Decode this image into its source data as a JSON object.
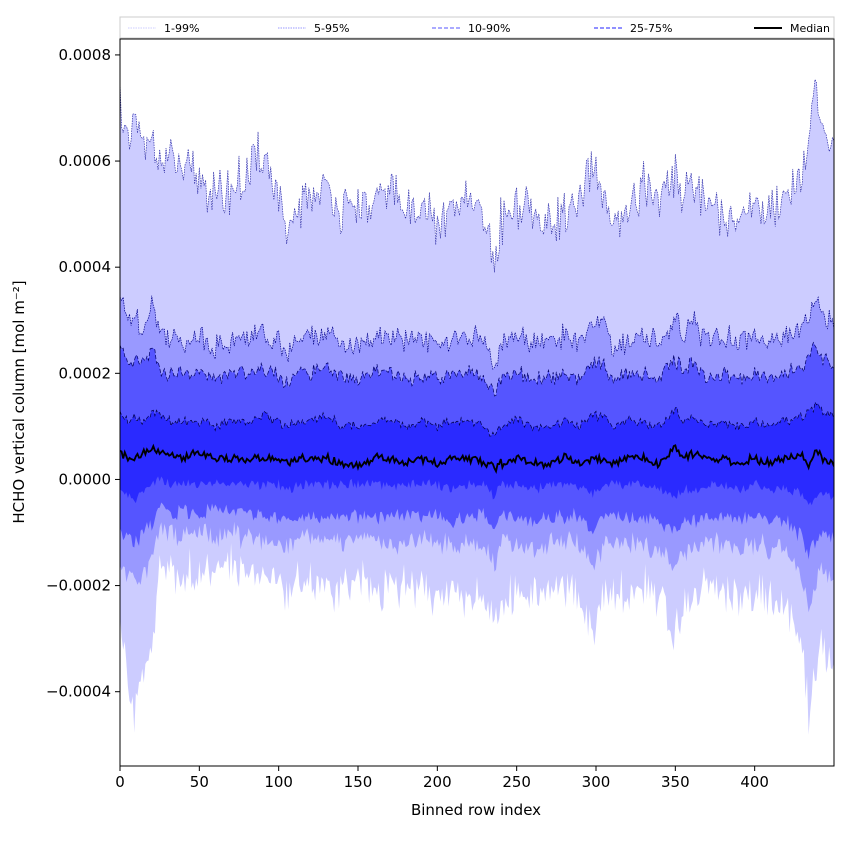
{
  "chart_data": {
    "type": "area",
    "title": "",
    "xlabel": "Binned row index",
    "ylabel": "HCHO vertical column [mol m⁻²]",
    "xlim": [
      0,
      450
    ],
    "ylim": [
      -0.00054,
      0.00083
    ],
    "xticks": [
      0,
      50,
      100,
      150,
      200,
      250,
      300,
      350,
      400
    ],
    "xtick_labels": [
      "0",
      "50",
      "100",
      "150",
      "200",
      "250",
      "300",
      "350",
      "400"
    ],
    "yticks": [
      -0.0004,
      -0.0002,
      0.0,
      0.0002,
      0.0004,
      0.0006,
      0.0008
    ],
    "ytick_labels": [
      "−0.0004",
      "−0.0002",
      "0.0000",
      "0.0002",
      "0.0004",
      "0.0006",
      "0.0008"
    ],
    "grid": false,
    "legend_position": "top, above plot",
    "legend": [
      {
        "label": "1-99%",
        "color": "#ccccff",
        "style": "dotted"
      },
      {
        "label": "5-95%",
        "color": "#9999ff",
        "style": "dotted"
      },
      {
        "label": "10-90%",
        "color": "#5555ff",
        "style": "dashed"
      },
      {
        "label": "25-75%",
        "color": "#2222ff",
        "style": "dashed"
      },
      {
        "label": "Median",
        "color": "#000000",
        "style": "solid"
      }
    ],
    "x_knots": [
      0,
      5,
      10,
      15,
      20,
      25,
      30,
      40,
      50,
      60,
      70,
      80,
      90,
      100,
      106,
      110,
      120,
      130,
      140,
      150,
      160,
      170,
      180,
      190,
      200,
      210,
      220,
      230,
      236,
      240,
      250,
      260,
      270,
      280,
      290,
      298,
      305,
      310,
      320,
      330,
      340,
      350,
      355,
      360,
      370,
      380,
      390,
      400,
      410,
      420,
      430,
      434,
      438,
      442,
      446,
      450
    ],
    "bands": [
      {
        "name": "1-99%",
        "fill": "#ccccff",
        "edge": "#3333aa",
        "upper": [
          0.00072,
          0.00062,
          0.00068,
          0.00061,
          0.00065,
          0.0006,
          0.0006,
          0.00058,
          0.00057,
          0.00053,
          0.00055,
          0.00057,
          0.00062,
          0.00054,
          0.00042,
          0.0005,
          0.00053,
          0.00055,
          0.0005,
          0.00052,
          0.00051,
          0.00056,
          0.0005,
          0.00053,
          0.00047,
          0.00051,
          0.00052,
          0.00048,
          0.0004,
          0.00049,
          0.00052,
          0.0005,
          0.00048,
          0.0005,
          0.00052,
          0.00058,
          0.00054,
          0.00046,
          0.0005,
          0.00056,
          0.00052,
          0.00058,
          0.00054,
          0.00056,
          0.00052,
          0.0005,
          0.00048,
          0.00052,
          0.0005,
          0.00054,
          0.00058,
          0.00064,
          0.00072,
          0.00066,
          0.00062,
          0.0006
        ],
        "lower": [
          -0.00028,
          -0.0004,
          -0.00044,
          -0.00034,
          -0.00032,
          -0.00016,
          -0.00017,
          -0.00018,
          -0.00017,
          -0.00018,
          -0.00016,
          -0.00017,
          -0.00018,
          -0.00019,
          -0.00023,
          -0.0002,
          -0.00019,
          -0.0002,
          -0.00021,
          -0.00019,
          -0.00022,
          -0.00021,
          -0.0002,
          -0.0002,
          -0.00021,
          -0.00022,
          -0.00021,
          -0.00021,
          -0.00028,
          -0.00022,
          -0.00021,
          -0.00022,
          -0.00021,
          -0.0002,
          -0.00022,
          -0.0003,
          -0.00021,
          -0.0002,
          -0.00022,
          -0.00021,
          -0.00022,
          -0.0003,
          -0.00024,
          -0.00022,
          -0.0002,
          -0.00021,
          -0.00022,
          -0.00021,
          -0.00022,
          -0.00023,
          -0.00034,
          -0.00044,
          -0.00036,
          -0.0003,
          -0.00036,
          -0.00034
        ]
      },
      {
        "name": "5-95%",
        "fill": "#9999ff",
        "edge": "#000088",
        "upper": [
          0.00034,
          0.0003,
          0.00031,
          0.00028,
          0.00034,
          0.00028,
          0.00027,
          0.00026,
          0.00027,
          0.00025,
          0.00026,
          0.00027,
          0.00028,
          0.00026,
          0.00024,
          0.00026,
          0.00027,
          0.00028,
          0.00026,
          0.00025,
          0.00026,
          0.00027,
          0.00026,
          0.00027,
          0.00025,
          0.00026,
          0.00027,
          0.00026,
          0.00021,
          0.00026,
          0.00027,
          0.00026,
          0.00026,
          0.00027,
          0.00026,
          0.00029,
          0.0003,
          0.00025,
          0.00026,
          0.00027,
          0.00026,
          0.00031,
          0.00027,
          0.0003,
          0.00026,
          0.00027,
          0.00026,
          0.00027,
          0.00026,
          0.00027,
          0.00029,
          0.00031,
          0.00034,
          0.00031,
          0.0003,
          0.00029
        ],
        "lower": [
          -0.00016,
          -0.00018,
          -0.0002,
          -0.00017,
          -0.00016,
          -9e-05,
          -0.0001,
          -0.00011,
          -0.0001,
          -0.00011,
          -0.0001,
          -0.00011,
          -0.00011,
          -0.00012,
          -0.00013,
          -0.00012,
          -0.00011,
          -0.00012,
          -0.00012,
          -0.00011,
          -0.00012,
          -0.00012,
          -0.00012,
          -0.00011,
          -0.00012,
          -0.00013,
          -0.00012,
          -0.00012,
          -0.00016,
          -0.00012,
          -0.00012,
          -0.00013,
          -0.00012,
          -0.00011,
          -0.00012,
          -0.00017,
          -0.00012,
          -0.00011,
          -0.00012,
          -0.00012,
          -0.00013,
          -0.00017,
          -0.00014,
          -0.00013,
          -0.00012,
          -0.00012,
          -0.00013,
          -0.00012,
          -0.00013,
          -0.00013,
          -0.00019,
          -0.00024,
          -0.0002,
          -0.00017,
          -0.00019,
          -0.00018
        ]
      },
      {
        "name": "10-90%",
        "fill": "#5555ff",
        "edge": "#000066",
        "upper": [
          0.00025,
          0.00021,
          0.00023,
          0.00021,
          0.00025,
          0.00021,
          0.0002,
          0.0002,
          0.0002,
          0.00019,
          0.0002,
          0.0002,
          0.00021,
          0.0002,
          0.00018,
          0.0002,
          0.0002,
          0.00021,
          0.00019,
          0.00019,
          0.0002,
          0.0002,
          0.00019,
          0.0002,
          0.00019,
          0.0002,
          0.0002,
          0.00019,
          0.00016,
          0.00019,
          0.0002,
          0.00019,
          0.00019,
          0.0002,
          0.00019,
          0.00022,
          0.00022,
          0.00019,
          0.0002,
          0.0002,
          0.00019,
          0.00023,
          0.0002,
          0.00022,
          0.00019,
          0.0002,
          0.00019,
          0.0002,
          0.00019,
          0.0002,
          0.00021,
          0.00023,
          0.00025,
          0.00023,
          0.00022,
          0.00021
        ],
        "lower": [
          -0.0001,
          -0.00011,
          -0.00012,
          -0.0001,
          -9e-05,
          -5e-05,
          -6e-05,
          -6e-05,
          -6e-05,
          -6e-05,
          -6e-05,
          -6e-05,
          -7e-05,
          -7e-05,
          -8e-05,
          -7e-05,
          -7e-05,
          -7e-05,
          -7e-05,
          -7e-05,
          -7e-05,
          -7e-05,
          -7e-05,
          -7e-05,
          -7e-05,
          -8e-05,
          -7e-05,
          -7e-05,
          -0.0001,
          -7e-05,
          -7e-05,
          -8e-05,
          -7e-05,
          -7e-05,
          -7e-05,
          -0.0001,
          -7e-05,
          -7e-05,
          -7e-05,
          -7e-05,
          -8e-05,
          -0.0001,
          -8e-05,
          -8e-05,
          -7e-05,
          -7e-05,
          -8e-05,
          -7e-05,
          -8e-05,
          -8e-05,
          -0.00011,
          -0.00014,
          -0.00012,
          -0.0001,
          -0.00011,
          -0.00011
        ]
      },
      {
        "name": "25-75%",
        "fill": "#2a2aff",
        "edge": "#000044",
        "upper": [
          0.00013,
          0.00011,
          0.00012,
          0.00011,
          0.00013,
          0.00012,
          0.00011,
          0.00011,
          0.00011,
          0.0001,
          0.00011,
          0.00011,
          0.00012,
          0.00011,
          0.0001,
          0.00011,
          0.00011,
          0.00012,
          0.0001,
          0.0001,
          0.00011,
          0.00011,
          0.0001,
          0.00011,
          0.0001,
          0.00011,
          0.00011,
          0.0001,
          8e-05,
          0.0001,
          0.00011,
          0.0001,
          0.0001,
          0.00011,
          0.0001,
          0.00012,
          0.00012,
          0.0001,
          0.00011,
          0.00011,
          0.0001,
          0.00013,
          0.00011,
          0.00012,
          0.0001,
          0.00011,
          0.0001,
          0.00011,
          0.0001,
          0.00011,
          0.00012,
          0.00013,
          0.00014,
          0.00013,
          0.00012,
          0.00012
        ],
        "lower": [
          -2e-05,
          -3e-05,
          -4e-05,
          -2e-05,
          -1e-05,
          0.0,
          -1e-05,
          -1e-05,
          -1e-05,
          -1e-05,
          -1e-05,
          -1e-05,
          -1e-05,
          -1e-05,
          -2e-05,
          -1e-05,
          -1e-05,
          -1e-05,
          -1e-05,
          -1e-05,
          -1e-05,
          -1e-05,
          -1e-05,
          -1e-05,
          -1e-05,
          -2e-05,
          -1e-05,
          -1e-05,
          -3e-05,
          -1e-05,
          -1e-05,
          -2e-05,
          -1e-05,
          -1e-05,
          -1e-05,
          -3e-05,
          -1e-05,
          -1e-05,
          -1e-05,
          -1e-05,
          -2e-05,
          -3e-05,
          -2e-05,
          -2e-05,
          -1e-05,
          -1e-05,
          -2e-05,
          -1e-05,
          -2e-05,
          -2e-05,
          -3e-05,
          -5e-05,
          -4e-05,
          -3e-05,
          -3e-05,
          -3e-05
        ]
      }
    ],
    "median": {
      "name": "Median",
      "color": "#000000",
      "values": [
        5e-05,
        4e-05,
        4e-05,
        5e-05,
        6e-05,
        5e-05,
        5e-05,
        4e-05,
        5e-05,
        4e-05,
        4e-05,
        4e-05,
        4e-05,
        4e-05,
        3e-05,
        4e-05,
        4e-05,
        4e-05,
        3e-05,
        3e-05,
        4e-05,
        4e-05,
        3e-05,
        4e-05,
        3e-05,
        4e-05,
        4e-05,
        3e-05,
        2e-05,
        3e-05,
        4e-05,
        3e-05,
        3e-05,
        4e-05,
        3e-05,
        4e-05,
        4e-05,
        3e-05,
        4e-05,
        4e-05,
        3e-05,
        6e-05,
        4e-05,
        5e-05,
        4e-05,
        4e-05,
        3e-05,
        4e-05,
        3e-05,
        4e-05,
        5e-05,
        2e-05,
        6e-05,
        4e-05,
        3e-05,
        3e-05
      ]
    }
  }
}
